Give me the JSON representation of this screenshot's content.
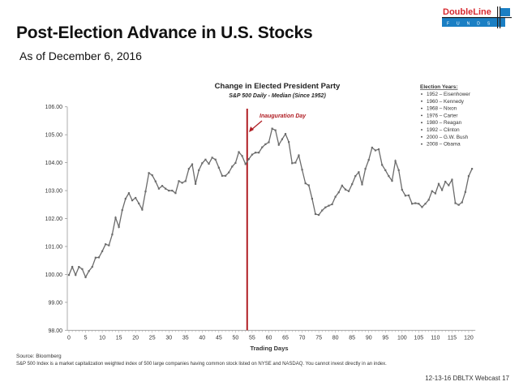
{
  "slide": {
    "title": "Post-Election Advance in U.S. Stocks",
    "subtitle": "As of December 6, 2016",
    "logo": {
      "name": "DoubleLine",
      "sub": "FUNDS",
      "brand_red": "#d7282f",
      "brand_blue": "#1a7fc4"
    },
    "source": "Source: Bloomberg",
    "note": "S&P 500 Index is a market capitalization weighted index of 500 large companies having common stock listed on NYSE and NASDAQ. You cannot invest directly in an index.",
    "footer": "12-13-16 DBLTX Webcast 17"
  },
  "chart_data": {
    "type": "line",
    "title": "Change in Elected President Party",
    "subtitle": "S&P 500 Daily - Median  (Since 1952)",
    "xlabel": "Trading Days",
    "ylabel": "",
    "xlim": [
      0,
      121
    ],
    "ylim": [
      98,
      106
    ],
    "xticks": [
      0,
      5,
      10,
      15,
      20,
      25,
      30,
      35,
      40,
      45,
      50,
      55,
      60,
      65,
      70,
      75,
      80,
      85,
      90,
      95,
      100,
      105,
      110,
      115,
      120
    ],
    "yticks": [
      "98.00",
      "99.00",
      "100.00",
      "101.00",
      "102.00",
      "103.00",
      "104.00",
      "105.00",
      "106.00"
    ],
    "grid": false,
    "line_color": "#6b6b6b",
    "annotation": {
      "label": "Inauguration Day",
      "x": 53.5,
      "color": "#b01e24"
    },
    "legend": {
      "placement": "top-right",
      "heading": "Election Years:",
      "items": [
        "1952 – Eisenhower",
        "1960 – Kennedy",
        "1968 – Nixon",
        "1976 – Carter",
        "1980 – Reagan",
        "1992 – Clinton",
        "2000 – G.W. Bush",
        "2008 – Obama"
      ]
    },
    "x": [
      0,
      1,
      2,
      3,
      4,
      5,
      6,
      7,
      8,
      9,
      10,
      11,
      12,
      13,
      14,
      15,
      16,
      17,
      18,
      19,
      20,
      21,
      22,
      23,
      24,
      25,
      26,
      27,
      28,
      29,
      30,
      31,
      32,
      33,
      34,
      35,
      36,
      37,
      38,
      39,
      40,
      41,
      42,
      43,
      44,
      45,
      46,
      47,
      48,
      49,
      50,
      51,
      52,
      53,
      54,
      55,
      56,
      57,
      58,
      59,
      60,
      61,
      62,
      63,
      64,
      65,
      66,
      67,
      68,
      69,
      70,
      71,
      72,
      73,
      74,
      75,
      76,
      77,
      78,
      79,
      80,
      81,
      82,
      83,
      84,
      85,
      86,
      87,
      88,
      89,
      90,
      91,
      92,
      93,
      94,
      95,
      96,
      97,
      98,
      99,
      100,
      101,
      102,
      103,
      104,
      105,
      106,
      107,
      108,
      109,
      110,
      111,
      112,
      113,
      114,
      115,
      116,
      117,
      118,
      119,
      120,
      121
    ],
    "values": [
      99.98,
      100.27,
      99.98,
      100.27,
      100.19,
      99.9,
      100.12,
      100.27,
      100.6,
      100.61,
      100.83,
      101.08,
      101.04,
      101.43,
      102.03,
      101.7,
      102.3,
      102.71,
      102.91,
      102.65,
      102.74,
      102.54,
      102.32,
      102.97,
      103.63,
      103.55,
      103.33,
      103.07,
      103.17,
      103.07,
      103.0,
      103.0,
      102.91,
      103.34,
      103.28,
      103.34,
      103.78,
      103.94,
      103.24,
      103.73,
      103.98,
      104.11,
      103.96,
      104.18,
      104.11,
      103.82,
      103.53,
      103.53,
      103.65,
      103.86,
      103.99,
      104.38,
      104.24,
      103.95,
      104.13,
      104.29,
      104.36,
      104.36,
      104.55,
      104.66,
      104.73,
      105.22,
      105.16,
      104.64,
      104.84,
      105.03,
      104.74,
      103.98,
      104.0,
      104.26,
      103.75,
      103.26,
      103.19,
      102.71,
      102.16,
      102.13,
      102.29,
      102.4,
      102.46,
      102.51,
      102.78,
      102.94,
      103.18,
      103.04,
      102.98,
      103.23,
      103.52,
      103.66,
      103.22,
      103.78,
      104.1,
      104.54,
      104.44,
      104.48,
      103.92,
      103.73,
      103.52,
      103.35,
      104.06,
      103.73,
      103.03,
      102.82,
      102.83,
      102.53,
      102.55,
      102.53,
      102.41,
      102.53,
      102.67,
      102.98,
      102.9,
      103.24,
      103.02,
      103.32,
      103.19,
      103.39,
      102.55,
      102.49,
      102.58,
      102.95,
      103.52,
      103.78
    ]
  }
}
